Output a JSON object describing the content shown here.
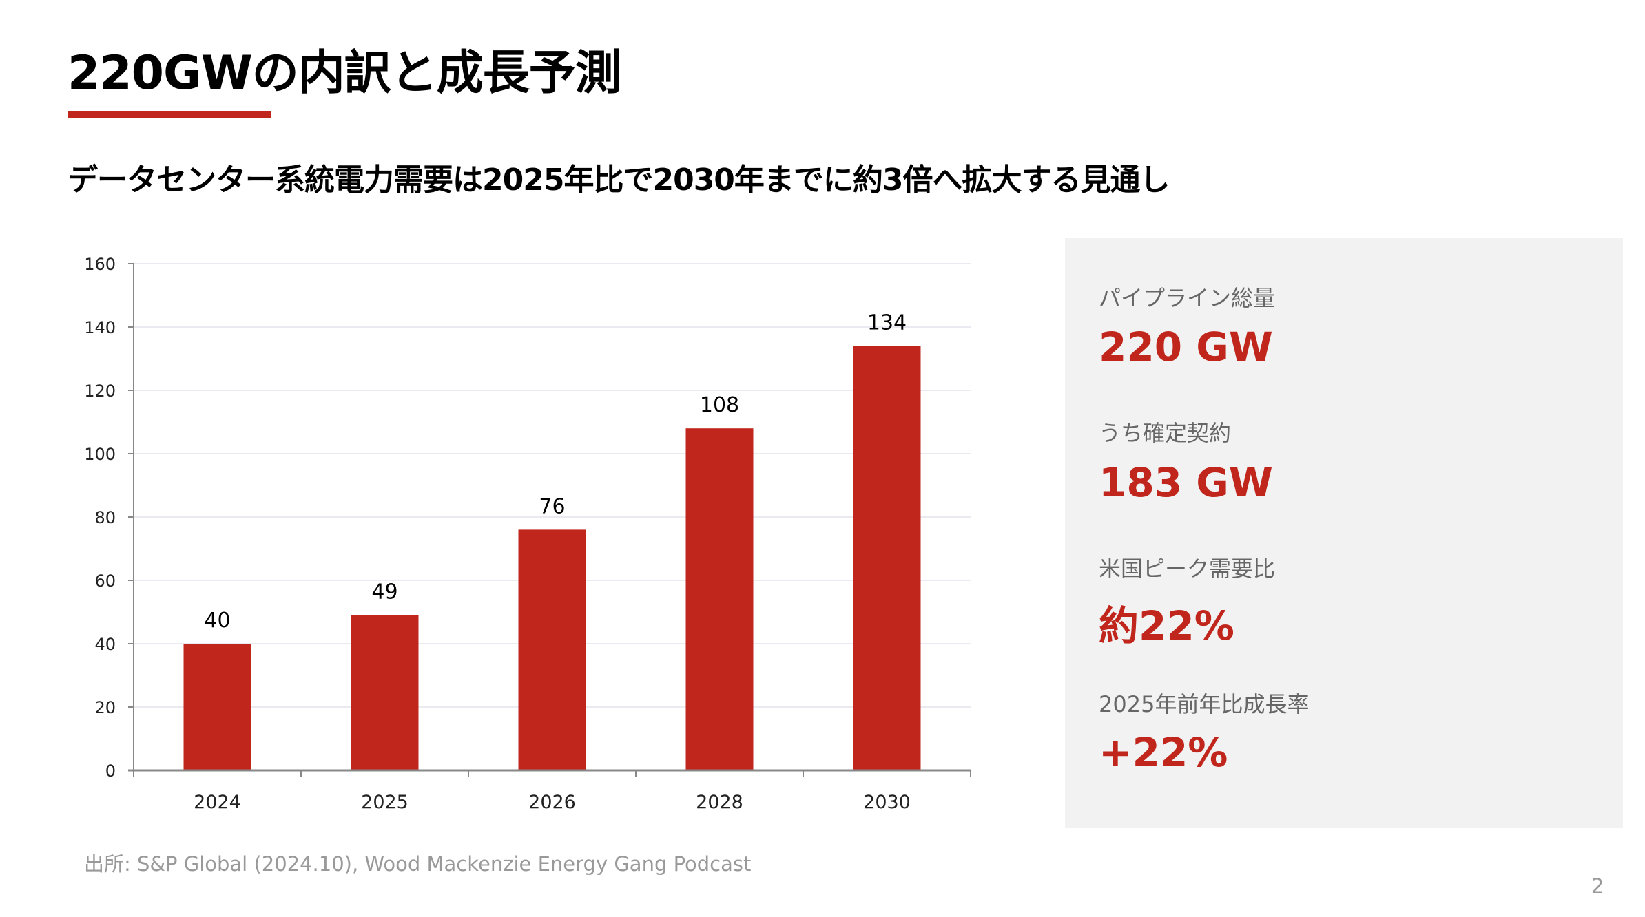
{
  "title": "220GWの内訳と成長予測",
  "subtitle": "データセンター系統電力需要は2025年比で2030年までに約3倍へ拡大する見通し",
  "accent_color": "#c0261c",
  "chart_data": {
    "type": "bar",
    "categories": [
      "2024",
      "2025",
      "2026",
      "2028",
      "2030"
    ],
    "values": [
      40,
      49,
      76,
      108,
      134
    ],
    "data_labels": [
      "40",
      "49",
      "76",
      "108",
      "134"
    ],
    "ylim": [
      0,
      160
    ],
    "yticks": [
      "0",
      "20",
      "40",
      "60",
      "80",
      "100",
      "120",
      "140",
      "160"
    ],
    "xlabel": "",
    "ylabel": "",
    "grid": true,
    "bar_color": "#c0261c"
  },
  "kpis": [
    {
      "label": "パイプライン総量",
      "value": "220 GW"
    },
    {
      "label": "うち確定契約",
      "value": "183 GW"
    },
    {
      "label": "米国ピーク需要比",
      "value": "約22%"
    },
    {
      "label": "2025年前年比成長率",
      "value": "+22%"
    }
  ],
  "source": "出所: S&P Global (2024.10), Wood Mackenzie Energy Gang Podcast",
  "page_number": "2"
}
